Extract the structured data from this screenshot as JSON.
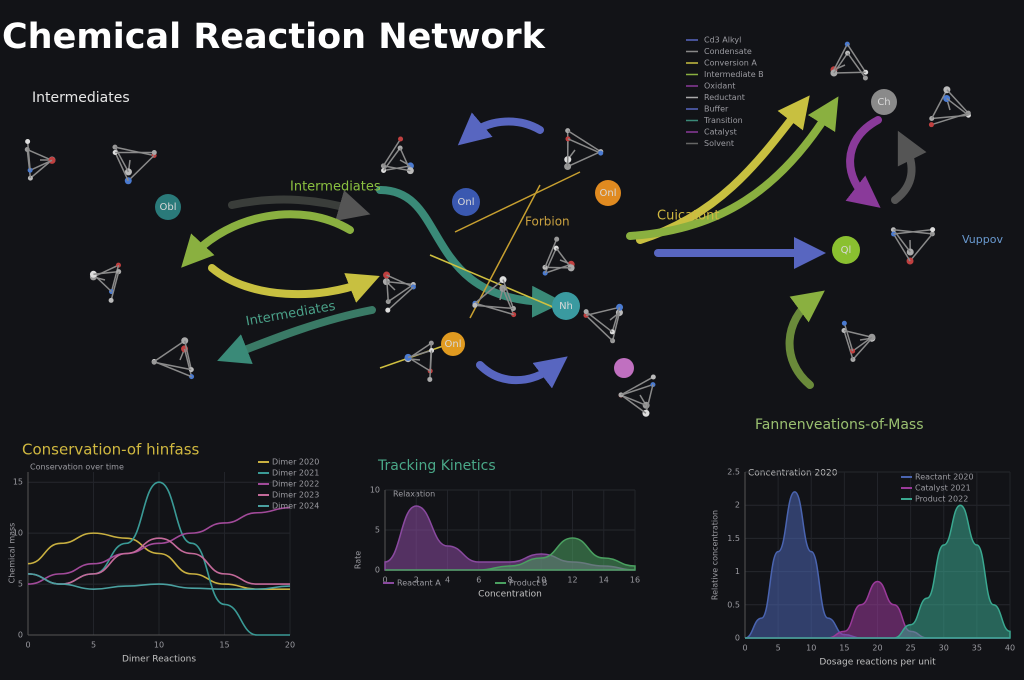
{
  "title": "Chemical Reaction Network",
  "diagram": {
    "section_label": "Intermediates",
    "arrow_labels": [
      "Intermediates",
      "Intermediates",
      "Forbion",
      "Cuicatont",
      "Fannenveations-of-Mass",
      "Vuppov"
    ],
    "nodes": [
      "Obl",
      "Onl",
      "Onl",
      "Onl",
      "Nh",
      "Ch",
      "Ql"
    ],
    "legend": [
      "Cd3 Alkyl",
      "Condensate",
      "Conversion A",
      "Intermediate B",
      "Oxidant",
      "Reductant",
      "Buffer",
      "Transition",
      "Catalyst",
      "Solvent"
    ]
  },
  "chart_data": [
    {
      "type": "line",
      "title": "Conservation-of hinfass",
      "subtitle": "Conservation over time",
      "xlabel": "Dimer Reactions",
      "ylabel": "Chemical mass",
      "x": [
        0,
        2.5,
        5,
        7.5,
        10,
        12.5,
        15,
        17.5,
        20
      ],
      "xlim": [
        0,
        20
      ],
      "xticks": [
        0,
        5,
        10,
        15,
        20
      ],
      "ylim": [
        0,
        16
      ],
      "yticks": [
        0,
        5,
        10,
        15
      ],
      "series": [
        {
          "name": "Dimer 2020",
          "color": "#c9b040",
          "values": [
            7,
            9,
            10,
            9.5,
            8,
            6,
            5,
            4.5,
            4.5
          ]
        },
        {
          "name": "Dimer 2021",
          "color": "#3a9a96",
          "values": [
            6,
            5,
            6,
            9,
            15,
            9,
            3,
            0,
            0
          ]
        },
        {
          "name": "Dimer 2022",
          "color": "#a24a9a",
          "values": [
            5,
            6,
            7,
            8,
            9,
            10,
            11,
            12,
            12.5
          ]
        },
        {
          "name": "Dimer 2023",
          "color": "#c46a9a",
          "values": [
            6,
            5,
            6,
            8,
            9.5,
            8,
            6,
            5,
            5
          ]
        },
        {
          "name": "Dimer 2024",
          "color": "#4aa0a0",
          "values": [
            6,
            5,
            4.5,
            4.8,
            5,
            4.6,
            4.5,
            4.5,
            4.8
          ]
        }
      ]
    },
    {
      "type": "area",
      "title": "Tracking Kinetics",
      "subtitle": "Relaxation",
      "xlabel": "Concentration",
      "ylabel": "Rate",
      "x": [
        0,
        2,
        4,
        6,
        8,
        10,
        12,
        14,
        16
      ],
      "xlim": [
        0,
        16
      ],
      "xticks": [
        0,
        2,
        4,
        6,
        8,
        10,
        12,
        14,
        16
      ],
      "ylim": [
        0,
        10
      ],
      "yticks": [
        0,
        5,
        10
      ],
      "series": [
        {
          "name": "Reactant A",
          "color": "#8a4aa0",
          "values": [
            1,
            8,
            3,
            1,
            1,
            2,
            1,
            0.5,
            0
          ]
        },
        {
          "name": "Product B",
          "color": "#4aa060",
          "values": [
            0,
            0,
            0,
            0,
            0.5,
            1.5,
            4,
            1.5,
            0.5
          ]
        }
      ]
    },
    {
      "type": "area",
      "title": "Concentration 2020",
      "xlabel": "Dosage reactions per unit",
      "ylabel": "Relative concentration",
      "x": [
        0,
        2.5,
        5,
        7.5,
        10,
        12.5,
        15,
        17.5,
        20,
        22.5,
        25,
        27.5,
        30,
        32.5,
        35,
        37.5,
        40
      ],
      "xlim": [
        0,
        40
      ],
      "xticks": [
        0,
        5,
        10,
        15,
        20,
        25,
        30,
        35,
        40
      ],
      "ylim": [
        0,
        2.5
      ],
      "yticks": [
        0,
        0.5,
        1,
        1.5,
        2,
        2.5
      ],
      "series": [
        {
          "name": "Reactant 2020",
          "color": "#4a64b0",
          "values": [
            0,
            0.3,
            1.3,
            2.2,
            1.3,
            0.3,
            0.05,
            0,
            0,
            0,
            0,
            0,
            0,
            0,
            0,
            0,
            0
          ]
        },
        {
          "name": "Catalyst 2021",
          "color": "#9a3a9a",
          "values": [
            0,
            0,
            0,
            0,
            0,
            0,
            0.1,
            0.5,
            0.85,
            0.5,
            0.1,
            0,
            0,
            0,
            0,
            0,
            0
          ]
        },
        {
          "name": "Product 2022",
          "color": "#3aa890",
          "values": [
            0,
            0,
            0,
            0,
            0,
            0,
            0,
            0,
            0,
            0,
            0.2,
            0.6,
            1.4,
            2,
            1.4,
            0.5,
            0.1
          ]
        }
      ]
    }
  ]
}
